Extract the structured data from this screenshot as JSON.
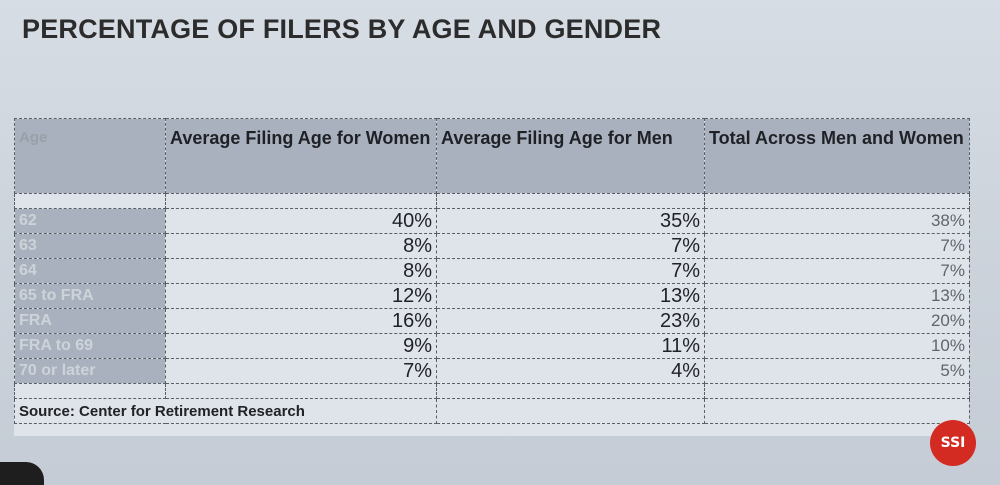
{
  "chart_data": {
    "type": "table",
    "title": "PERCENTAGE OF FILERS BY AGE AND GENDER",
    "columns": [
      "Age",
      "Average Filing Age for Women",
      "Average Filing Age for Men",
      "Total Across Men and Women"
    ],
    "rows": [
      {
        "age": "62",
        "women": "40%",
        "men": "35%",
        "total": "38%"
      },
      {
        "age": "63",
        "women": "8%",
        "men": "7%",
        "total": "7%"
      },
      {
        "age": "64",
        "women": "8%",
        "men": "7%",
        "total": "7%"
      },
      {
        "age": "65 to FRA",
        "women": "12%",
        "men": "13%",
        "total": "13%"
      },
      {
        "age": "FRA",
        "women": "16%",
        "men": "23%",
        "total": "20%"
      },
      {
        "age": "FRA to 69",
        "women": "9%",
        "men": "11%",
        "total": "10%"
      },
      {
        "age": "70 or later",
        "women": "7%",
        "men": "4%",
        "total": "5%"
      }
    ],
    "source": "Source: Center for Retirement Research"
  },
  "logo_text": "SSI",
  "colors": {
    "header_bg": "#a8b1bd",
    "cell_bg": "#dfe4ea",
    "page_bg": "#cdd4dc",
    "logo_red": "#d32a22"
  }
}
